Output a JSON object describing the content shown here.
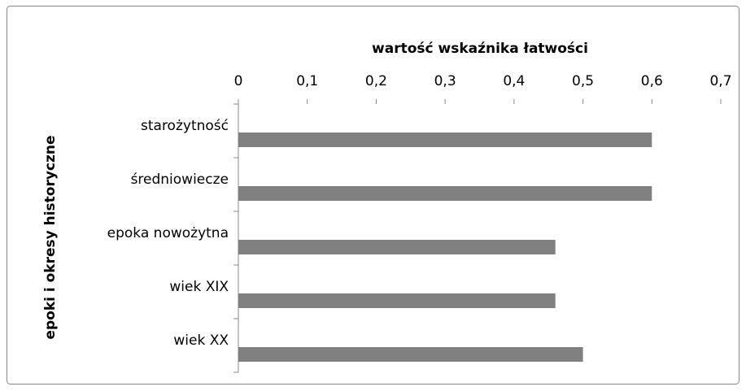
{
  "chart_data": {
    "type": "bar",
    "orientation": "horizontal",
    "x_label": "wartość wskaźnika łatwości",
    "y_label": "epoki i okresy historyczne",
    "categories": [
      "starożytność",
      "średniowiecze",
      "epoka nowożytna",
      "wiek XIX",
      "wiek XX"
    ],
    "values": [
      0.6,
      0.6,
      0.46,
      0.46,
      0.5
    ],
    "color": "#808080",
    "xlim": [
      0,
      0.7
    ],
    "xticks": [
      0,
      {
        "value": 0.1,
        "label": "0,1"
      },
      {
        "value": 0.2,
        "label": "0,2"
      },
      {
        "value": 0.3,
        "label": "0,3"
      },
      {
        "value": 0.4,
        "label": "0,4"
      },
      {
        "value": 0.5,
        "label": "0,5"
      },
      {
        "value": 0.6,
        "label": "0,6"
      },
      {
        "value": 0.7,
        "label": "0,7"
      }
    ],
    "grid": false
  }
}
